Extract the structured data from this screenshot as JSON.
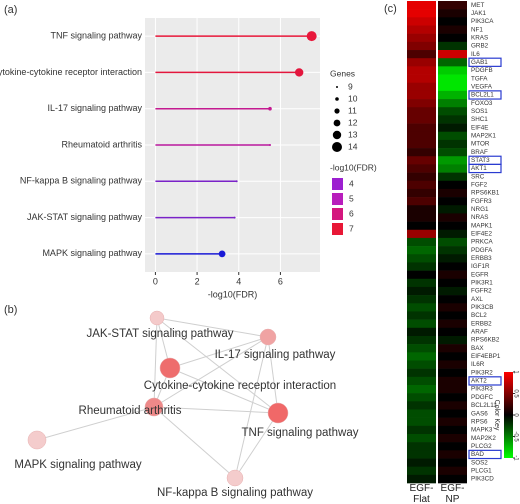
{
  "panel_labels": [
    "(a)",
    "(b)",
    "(c)"
  ],
  "chart_data": [
    {
      "type": "lollipop",
      "x_label": "-log10(FDR)",
      "categories": [
        "TNF signaling pathway",
        "Cytokine-cytokine receptor interaction",
        "IL-17 signaling pathway",
        "Rheumatoid arthritis",
        "NF-kappa B signaling pathway",
        "JAK-STAT signaling pathway",
        "MAPK signaling pathway"
      ],
      "values": [
        7.5,
        6.9,
        5.5,
        5.5,
        3.9,
        3.8,
        3.2
      ],
      "sizes": [
        14,
        13,
        10,
        9,
        9,
        9,
        12
      ],
      "colors": [
        "#e8173a",
        "#e3163d",
        "#c41a90",
        "#b9199e",
        "#7a22c8",
        "#7a22c8",
        "#1a1ad6"
      ],
      "xlim": [
        -0.5,
        7.9
      ],
      "xticks": [
        0,
        2,
        4,
        6
      ],
      "grid": true,
      "size_legend": {
        "title": "Genes",
        "values": [
          9,
          10,
          11,
          12,
          13,
          14
        ]
      },
      "color_legend": {
        "title": "-log10(FDR)",
        "values": [
          4,
          5,
          6,
          7
        ],
        "colors": [
          "#9c1fd0",
          "#b81ebc",
          "#d4177e",
          "#e81736"
        ]
      }
    },
    {
      "type": "heatmap",
      "color_key_title": "Color Key",
      "columns": [
        "EGF-Flat",
        "EGF-NP"
      ],
      "rows": [
        "MET",
        "JAK1",
        "PIK3CA",
        "NF1",
        "KRAS",
        "GRB2",
        "IL6",
        "GAB1",
        "PDGFB",
        "TGFA",
        "VEGFA",
        "BCL2L1",
        "FOXO3",
        "SOS1",
        "SHC1",
        "EIF4E",
        "MAP2K1",
        "MTOR",
        "BRAF",
        "STAT3",
        "AKT1",
        "SRC",
        "FGF2",
        "RPS6KB1",
        "FGFR3",
        "NRG1",
        "NRAS",
        "MAPK1",
        "EIF4E2",
        "PRKCA",
        "PDGFA",
        "ERBB3",
        "IGF1R",
        "EGFR",
        "PIK3R1",
        "FGFR2",
        "AXL",
        "PIK3CB",
        "BCL2",
        "ERBB2",
        "ARAF",
        "RPS6KB2",
        "BAX",
        "EIF4EBP1",
        "IL6R",
        "PIK3R2",
        "AKT2",
        "PIK3R3",
        "PDGFC",
        "BCL2L11",
        "GAS6",
        "RPS6",
        "MAPK3",
        "MAP2K2",
        "PLCG2",
        "BAD",
        "SOS2",
        "PLCG1",
        "PIK3CD"
      ],
      "values": [
        [
          0.9,
          0.2
        ],
        [
          0.9,
          0.1
        ],
        [
          0.8,
          0.0
        ],
        [
          0.7,
          0.1
        ],
        [
          0.6,
          0.0
        ],
        [
          0.5,
          -0.2
        ],
        [
          0.3,
          0.8
        ],
        [
          0.6,
          -0.4
        ],
        [
          0.7,
          -0.8
        ],
        [
          0.7,
          -0.9
        ],
        [
          0.6,
          -0.9
        ],
        [
          0.6,
          -0.7
        ],
        [
          0.5,
          -0.5
        ],
        [
          0.4,
          -0.3
        ],
        [
          0.4,
          -0.2
        ],
        [
          0.3,
          -0.1
        ],
        [
          0.3,
          -0.3
        ],
        [
          0.3,
          -0.2
        ],
        [
          0.2,
          -0.3
        ],
        [
          0.4,
          -0.6
        ],
        [
          0.3,
          -0.5
        ],
        [
          0.2,
          -0.2
        ],
        [
          0.3,
          0.0
        ],
        [
          0.2,
          0.1
        ],
        [
          0.3,
          0.0
        ],
        [
          0.1,
          -0.1
        ],
        [
          0.1,
          0.1
        ],
        [
          0.0,
          0.0
        ],
        [
          0.6,
          -0.1
        ],
        [
          -0.3,
          -0.3
        ],
        [
          -0.4,
          -0.2
        ],
        [
          -0.3,
          -0.1
        ],
        [
          -0.2,
          0.0
        ],
        [
          0.0,
          0.1
        ],
        [
          -0.2,
          0.0
        ],
        [
          -0.1,
          -0.1
        ],
        [
          -0.2,
          0.0
        ],
        [
          -0.3,
          0.1
        ],
        [
          -0.2,
          0.0
        ],
        [
          -0.3,
          0.1
        ],
        [
          -0.1,
          0.0
        ],
        [
          -0.2,
          -0.1
        ],
        [
          -0.3,
          0.1
        ],
        [
          -0.4,
          0.0
        ],
        [
          -0.3,
          0.1
        ],
        [
          -0.2,
          0.0
        ],
        [
          -0.3,
          0.1
        ],
        [
          -0.4,
          0.1
        ],
        [
          -0.3,
          0.0
        ],
        [
          -0.2,
          0.1
        ],
        [
          -0.3,
          0.0
        ],
        [
          -0.3,
          0.1
        ],
        [
          -0.2,
          0.0
        ],
        [
          -0.3,
          0.1
        ],
        [
          -0.2,
          0.0
        ],
        [
          -0.2,
          0.1
        ],
        [
          -0.1,
          0.0
        ],
        [
          -0.2,
          0.1
        ],
        [
          -0.1,
          0.0
        ]
      ],
      "boxed_rows": [
        7,
        11,
        19,
        20,
        46,
        55
      ],
      "box_color": "#2a3bd0",
      "colormap": [
        "#00ff00",
        "#000000",
        "#ff0000"
      ],
      "clim": [
        -1,
        1
      ],
      "cticks": [
        -1,
        -0.5,
        0,
        0.5,
        1
      ]
    }
  ],
  "network": {
    "nodes": [
      {
        "label": "JAK-STAT signaling pathway",
        "color": "#f4caca"
      },
      {
        "label": "IL-17 signaling pathway",
        "color": "#f0a3a3"
      },
      {
        "label": "Cytokine-cytokine receptor interaction",
        "color": "#ee6d6d"
      },
      {
        "label": "Rheumatoid arthritis",
        "color": "#ee8989"
      },
      {
        "label": "TNF signaling pathway",
        "color": "#f06868"
      },
      {
        "label": "MAPK signaling pathway",
        "color": "#f4cccc"
      },
      {
        "label": "NF-kappa B signaling pathway",
        "color": "#f4cccc"
      }
    ],
    "edges": [
      [
        4,
        2
      ],
      [
        4,
        1
      ],
      [
        4,
        3
      ],
      [
        4,
        6
      ],
      [
        4,
        0
      ],
      [
        2,
        3
      ],
      [
        2,
        1
      ],
      [
        2,
        0
      ],
      [
        3,
        1
      ],
      [
        3,
        6
      ],
      [
        3,
        5
      ],
      [
        1,
        6
      ],
      [
        0,
        1
      ],
      [
        0,
        3
      ]
    ]
  }
}
